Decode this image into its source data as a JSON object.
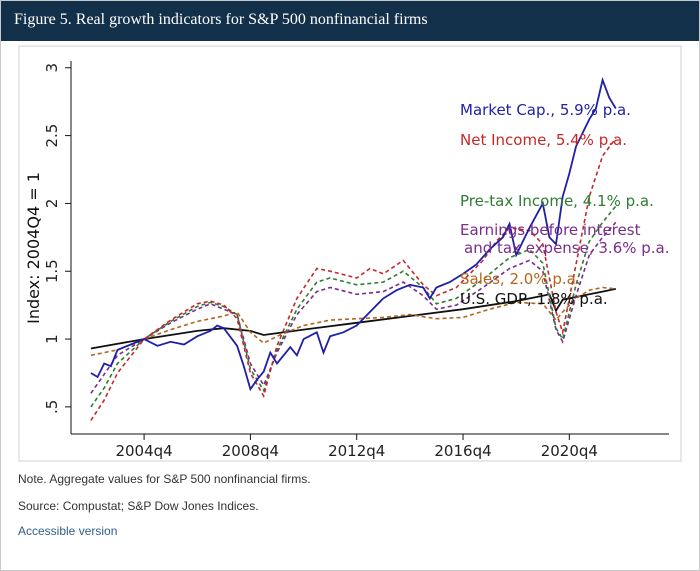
{
  "header": {
    "title": "Figure 5. Real growth indicators for S&P 500 nonfinancial firms"
  },
  "footer": {
    "note": "Note. Aggregate values for S&P 500 nonfinancial firms.",
    "source": "Source: Compustat; S&P Dow Jones Indices.",
    "link": "Accessible version"
  },
  "colors": {
    "header_bg": "#13304a",
    "link": "#2e5f8a"
  },
  "chart_data": {
    "type": "line",
    "title": "",
    "xlabel": "",
    "ylabel": "Index: 2004Q4 = 1",
    "xlim": [
      2002.0,
      2024.5
    ],
    "ylim": [
      0.3,
      3.05
    ],
    "grid": false,
    "legend": "labels at line ends (right)",
    "x_ticks": [
      2004.75,
      2008.75,
      2012.75,
      2016.75,
      2020.75
    ],
    "x_tick_labels": [
      "2004q4",
      "2008q4",
      "2012q4",
      "2016q4",
      "2020q4"
    ],
    "y_ticks": [
      0.5,
      1,
      1.5,
      2,
      2.5,
      3
    ],
    "y_tick_labels": [
      ".5",
      "1",
      "1.5",
      "2",
      "2.5",
      "3"
    ],
    "series": [
      {
        "name": "U.S. GDP, 1.8% p.a.",
        "color": "#111111",
        "style": "solid",
        "points": [
          [
            2002.75,
            0.93
          ],
          [
            2004.75,
            1.0
          ],
          [
            2006.75,
            1.06
          ],
          [
            2007.75,
            1.08
          ],
          [
            2008.75,
            1.06
          ],
          [
            2009.25,
            1.03
          ],
          [
            2010.75,
            1.07
          ],
          [
            2012.75,
            1.12
          ],
          [
            2014.75,
            1.17
          ],
          [
            2016.75,
            1.22
          ],
          [
            2018.75,
            1.28
          ],
          [
            2019.75,
            1.32
          ],
          [
            2020.0,
            1.33
          ],
          [
            2020.25,
            1.21
          ],
          [
            2020.5,
            1.29
          ],
          [
            2021.5,
            1.33
          ],
          [
            2022.0,
            1.35
          ],
          [
            2022.5,
            1.37
          ]
        ]
      },
      {
        "name": "Sales, 2.0% p.a.",
        "color": "#b5651d",
        "style": "dashed",
        "points": [
          [
            2002.75,
            0.88
          ],
          [
            2003.75,
            0.92
          ],
          [
            2004.75,
            1.0
          ],
          [
            2005.75,
            1.07
          ],
          [
            2006.75,
            1.13
          ],
          [
            2007.75,
            1.17
          ],
          [
            2008.25,
            1.2
          ],
          [
            2008.75,
            1.05
          ],
          [
            2009.25,
            0.97
          ],
          [
            2009.75,
            1.02
          ],
          [
            2010.75,
            1.1
          ],
          [
            2011.75,
            1.14
          ],
          [
            2012.75,
            1.15
          ],
          [
            2013.75,
            1.16
          ],
          [
            2014.75,
            1.18
          ],
          [
            2015.75,
            1.15
          ],
          [
            2016.75,
            1.16
          ],
          [
            2017.75,
            1.22
          ],
          [
            2018.75,
            1.27
          ],
          [
            2019.75,
            1.26
          ],
          [
            2020.25,
            1.14
          ],
          [
            2020.5,
            1.2
          ],
          [
            2021.0,
            1.3
          ],
          [
            2021.5,
            1.36
          ],
          [
            2022.0,
            1.38
          ],
          [
            2022.5,
            1.37
          ]
        ]
      },
      {
        "name": "Earnings before interest and tax expense, 3.6% p.a.",
        "color": "#7b2d8b",
        "style": "dashed",
        "points": [
          [
            2002.75,
            0.6
          ],
          [
            2003.25,
            0.74
          ],
          [
            2003.75,
            0.88
          ],
          [
            2004.75,
            1.0
          ],
          [
            2005.75,
            1.12
          ],
          [
            2006.75,
            1.22
          ],
          [
            2007.25,
            1.26
          ],
          [
            2007.75,
            1.22
          ],
          [
            2008.25,
            1.18
          ],
          [
            2008.75,
            0.82
          ],
          [
            2009.25,
            0.66
          ],
          [
            2009.75,
            0.9
          ],
          [
            2010.5,
            1.18
          ],
          [
            2011.25,
            1.35
          ],
          [
            2011.75,
            1.38
          ],
          [
            2012.75,
            1.33
          ],
          [
            2013.75,
            1.35
          ],
          [
            2014.5,
            1.42
          ],
          [
            2015.25,
            1.32
          ],
          [
            2015.75,
            1.22
          ],
          [
            2016.5,
            1.25
          ],
          [
            2017.5,
            1.38
          ],
          [
            2018.5,
            1.52
          ],
          [
            2019.25,
            1.58
          ],
          [
            2019.75,
            1.5
          ],
          [
            2020.25,
            1.07
          ],
          [
            2020.5,
            0.98
          ],
          [
            2021.0,
            1.32
          ],
          [
            2021.5,
            1.62
          ],
          [
            2022.0,
            1.75
          ],
          [
            2022.5,
            1.86
          ]
        ]
      },
      {
        "name": "Pre-tax Income, 4.1% p.a.",
        "color": "#2e7d32",
        "style": "dashed",
        "points": [
          [
            2002.75,
            0.5
          ],
          [
            2003.25,
            0.64
          ],
          [
            2003.75,
            0.82
          ],
          [
            2004.75,
            1.0
          ],
          [
            2005.75,
            1.13
          ],
          [
            2006.75,
            1.24
          ],
          [
            2007.25,
            1.27
          ],
          [
            2007.75,
            1.24
          ],
          [
            2008.25,
            1.18
          ],
          [
            2008.75,
            0.78
          ],
          [
            2009.25,
            0.62
          ],
          [
            2009.75,
            0.92
          ],
          [
            2010.5,
            1.22
          ],
          [
            2011.25,
            1.42
          ],
          [
            2011.75,
            1.45
          ],
          [
            2012.75,
            1.4
          ],
          [
            2013.75,
            1.42
          ],
          [
            2014.5,
            1.5
          ],
          [
            2015.25,
            1.38
          ],
          [
            2015.75,
            1.26
          ],
          [
            2016.5,
            1.3
          ],
          [
            2017.5,
            1.44
          ],
          [
            2018.5,
            1.6
          ],
          [
            2019.25,
            1.66
          ],
          [
            2019.75,
            1.56
          ],
          [
            2020.25,
            1.08
          ],
          [
            2020.5,
            1.0
          ],
          [
            2021.0,
            1.4
          ],
          [
            2021.5,
            1.72
          ],
          [
            2022.0,
            1.86
          ],
          [
            2022.5,
            1.98
          ]
        ]
      },
      {
        "name": "Net Income, 5.4% p.a.",
        "color": "#c62828",
        "style": "dashed",
        "points": [
          [
            2002.75,
            0.4
          ],
          [
            2003.25,
            0.55
          ],
          [
            2003.75,
            0.75
          ],
          [
            2004.75,
            1.0
          ],
          [
            2005.75,
            1.14
          ],
          [
            2006.75,
            1.26
          ],
          [
            2007.25,
            1.28
          ],
          [
            2007.75,
            1.25
          ],
          [
            2008.25,
            1.15
          ],
          [
            2008.75,
            0.75
          ],
          [
            2009.25,
            0.58
          ],
          [
            2009.75,
            0.95
          ],
          [
            2010.5,
            1.3
          ],
          [
            2011.25,
            1.52
          ],
          [
            2011.75,
            1.5
          ],
          [
            2012.75,
            1.45
          ],
          [
            2013.25,
            1.52
          ],
          [
            2013.75,
            1.48
          ],
          [
            2014.5,
            1.58
          ],
          [
            2015.25,
            1.4
          ],
          [
            2015.75,
            1.32
          ],
          [
            2016.5,
            1.38
          ],
          [
            2017.5,
            1.58
          ],
          [
            2018.0,
            1.72
          ],
          [
            2018.5,
            1.82
          ],
          [
            2019.25,
            1.8
          ],
          [
            2019.75,
            1.7
          ],
          [
            2020.25,
            1.2
          ],
          [
            2020.5,
            1.05
          ],
          [
            2021.0,
            1.55
          ],
          [
            2021.5,
            2.05
          ],
          [
            2022.0,
            2.35
          ],
          [
            2022.5,
            2.48
          ]
        ]
      },
      {
        "name": "Market Cap., 5.9% p.a.",
        "color": "#1f1fa8",
        "style": "solid",
        "points": [
          [
            2002.75,
            0.75
          ],
          [
            2003.0,
            0.72
          ],
          [
            2003.25,
            0.82
          ],
          [
            2003.5,
            0.8
          ],
          [
            2003.75,
            0.92
          ],
          [
            2004.25,
            0.96
          ],
          [
            2004.75,
            1.0
          ],
          [
            2005.25,
            0.95
          ],
          [
            2005.75,
            0.98
          ],
          [
            2006.25,
            0.96
          ],
          [
            2006.75,
            1.02
          ],
          [
            2007.25,
            1.06
          ],
          [
            2007.5,
            1.1
          ],
          [
            2007.75,
            1.08
          ],
          [
            2008.25,
            0.95
          ],
          [
            2008.5,
            0.8
          ],
          [
            2008.75,
            0.63
          ],
          [
            2009.0,
            0.7
          ],
          [
            2009.25,
            0.76
          ],
          [
            2009.5,
            0.9
          ],
          [
            2009.75,
            0.82
          ],
          [
            2010.25,
            0.94
          ],
          [
            2010.5,
            0.88
          ],
          [
            2010.75,
            1.0
          ],
          [
            2011.25,
            1.05
          ],
          [
            2011.5,
            0.9
          ],
          [
            2011.75,
            1.02
          ],
          [
            2012.25,
            1.05
          ],
          [
            2012.75,
            1.1
          ],
          [
            2013.25,
            1.2
          ],
          [
            2013.75,
            1.3
          ],
          [
            2014.25,
            1.36
          ],
          [
            2014.75,
            1.4
          ],
          [
            2015.25,
            1.38
          ],
          [
            2015.5,
            1.3
          ],
          [
            2015.75,
            1.38
          ],
          [
            2016.25,
            1.42
          ],
          [
            2016.75,
            1.48
          ],
          [
            2017.25,
            1.55
          ],
          [
            2017.75,
            1.66
          ],
          [
            2018.25,
            1.75
          ],
          [
            2018.5,
            1.85
          ],
          [
            2018.75,
            1.62
          ],
          [
            2019.25,
            1.82
          ],
          [
            2019.75,
            2.0
          ],
          [
            2020.0,
            1.75
          ],
          [
            2020.25,
            1.7
          ],
          [
            2020.5,
            2.05
          ],
          [
            2020.75,
            2.22
          ],
          [
            2021.0,
            2.42
          ],
          [
            2021.5,
            2.62
          ],
          [
            2021.75,
            2.7
          ],
          [
            2022.0,
            2.91
          ],
          [
            2022.25,
            2.78
          ],
          [
            2022.5,
            2.7
          ]
        ]
      }
    ],
    "labels": [
      {
        "text": "Market Cap., 5.9% p.a.",
        "color": "#1f1fa8"
      },
      {
        "text": "Net Income, 5.4% p.a.",
        "color": "#c62828"
      },
      {
        "text": "Pre-tax Income, 4.1% p.a.",
        "color": "#2e7d32"
      },
      {
        "text": "Earnings before interest",
        "color": "#7b2d8b"
      },
      {
        "text": "and tax expense, 3.6% p.a.",
        "color": "#7b2d8b"
      },
      {
        "text": "Sales, 2.0% p.a.",
        "color": "#b5651d"
      },
      {
        "text": "U.S. GDP, 1.8% p.a.",
        "color": "#111111"
      }
    ]
  }
}
